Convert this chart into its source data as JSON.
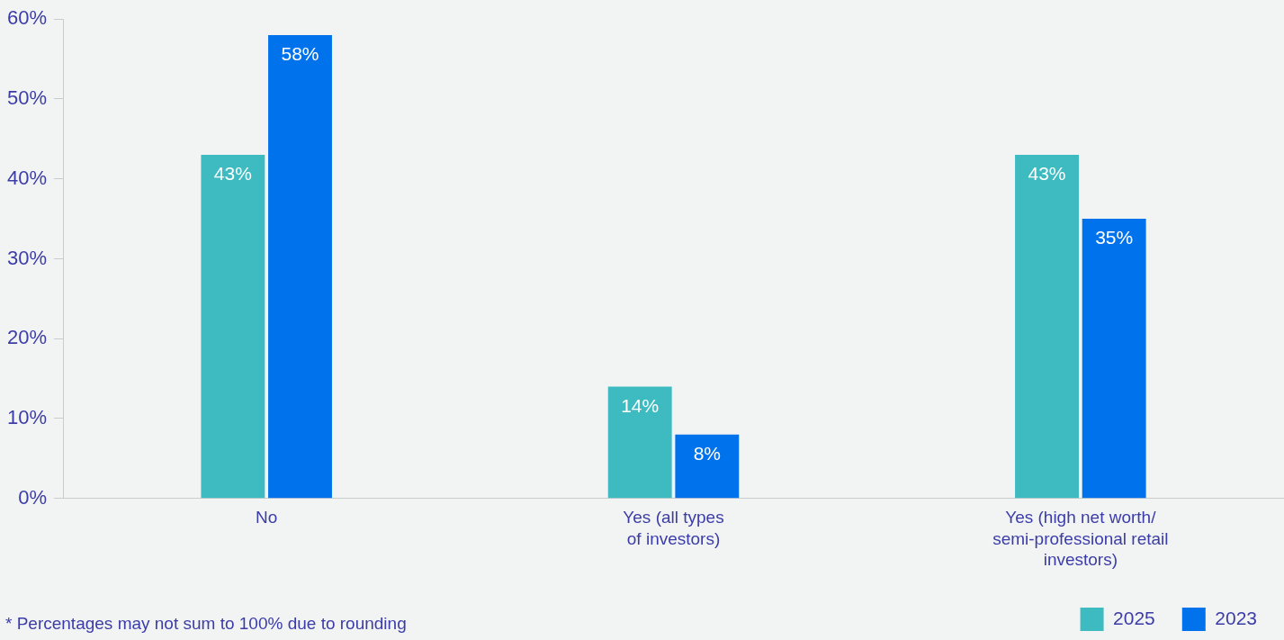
{
  "chart_data": {
    "type": "bar",
    "categories": [
      "No",
      "Yes (all types\nof investors)",
      "Yes (high net worth/\nsemi-professional retail\ninvestors)"
    ],
    "series": [
      {
        "name": "2025",
        "color": "#3dbbc1",
        "values": [
          43,
          14,
          43
        ],
        "value_labels": [
          "43%",
          "14%",
          "43%"
        ]
      },
      {
        "name": "2023",
        "color": "#0073ec",
        "values": [
          58,
          8,
          35
        ],
        "value_labels": [
          "58%",
          "8%",
          "35%"
        ]
      }
    ],
    "ylim": [
      0,
      60
    ],
    "yticks": [
      {
        "value": 0,
        "label": "0%"
      },
      {
        "value": 10,
        "label": "10%"
      },
      {
        "value": 20,
        "label": "20%"
      },
      {
        "value": 30,
        "label": "30%"
      },
      {
        "value": 40,
        "label": "40%"
      },
      {
        "value": 50,
        "label": "50%"
      },
      {
        "value": 60,
        "label": "60%"
      }
    ],
    "grid": false,
    "legend": "bottom right",
    "annotations": [
      "* Percentages may not sum to 100% due to rounding"
    ]
  }
}
